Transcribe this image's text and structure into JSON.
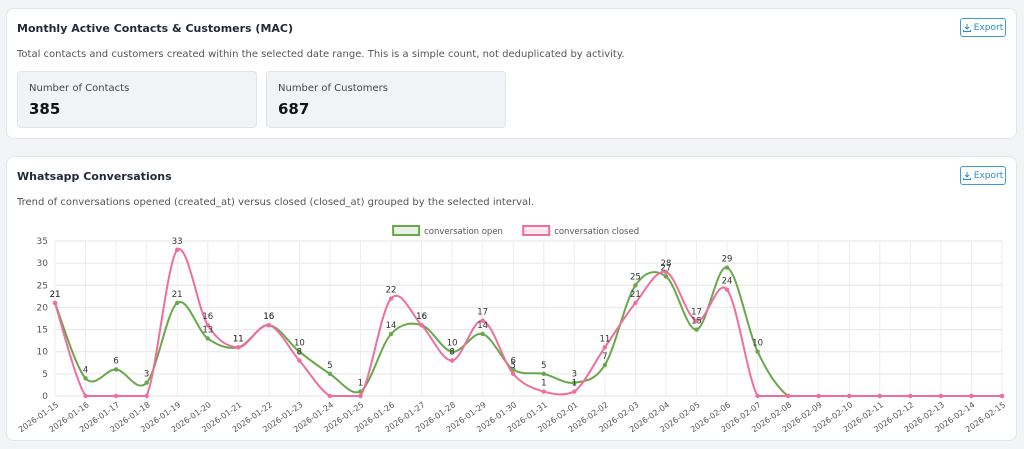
{
  "mac": {
    "title": "Monthly Active Contacts & Customers (MAC)",
    "export": "Export",
    "description": "Total contacts and customers created within the selected date range. This is a simple count, not deduplicated by activity.",
    "stats": [
      {
        "label": "Number of Contacts",
        "value": 385
      },
      {
        "label": "Number of Customers",
        "value": 687
      }
    ]
  },
  "whatsapp": {
    "title": "Whatsapp Conversations",
    "export": "Export",
    "description": "Trend of conversations opened (created_at) versus closed (closed_at) grouped by the selected interval."
  },
  "chart_data": {
    "type": "line",
    "categories": [
      "2026-01-15",
      "2026-01-16",
      "2026-01-17",
      "2026-01-18",
      "2026-01-19",
      "2026-01-20",
      "2026-01-21",
      "2026-01-22",
      "2026-01-23",
      "2026-01-24",
      "2026-01-25",
      "2026-01-26",
      "2026-01-27",
      "2026-01-28",
      "2026-01-29",
      "2026-01-30",
      "2026-01-31",
      "2026-02-01",
      "2026-02-02",
      "2026-02-03",
      "2026-02-04",
      "2026-02-05",
      "2026-02-06",
      "2026-02-07",
      "2026-02-08",
      "2026-02-09",
      "2026-02-10",
      "2026-02-11",
      "2026-02-12",
      "2026-02-13",
      "2026-02-14",
      "2026-02-15"
    ],
    "series": [
      {
        "name": "conversation open",
        "color": "#68a84a",
        "values": [
          21,
          4,
          6,
          3,
          21,
          13,
          11,
          16,
          10,
          5,
          1,
          14,
          16,
          10,
          14,
          6,
          5,
          3,
          7,
          25,
          27,
          15,
          29,
          10,
          0,
          0,
          0,
          0,
          0,
          0,
          0,
          0
        ]
      },
      {
        "name": "conversation closed",
        "color": "#f06e9e",
        "values": [
          21,
          0,
          0,
          0,
          33,
          16,
          11,
          16,
          8,
          0,
          0,
          22,
          16,
          8,
          17,
          5,
          1,
          1,
          11,
          21,
          28,
          17,
          24,
          0,
          0,
          0,
          0,
          0,
          0,
          0,
          0,
          0
        ]
      }
    ],
    "ylim": [
      0,
      35
    ],
    "yticks": [
      0,
      5,
      10,
      15,
      20,
      25,
      30,
      35
    ],
    "grid": true,
    "legend": "top"
  }
}
